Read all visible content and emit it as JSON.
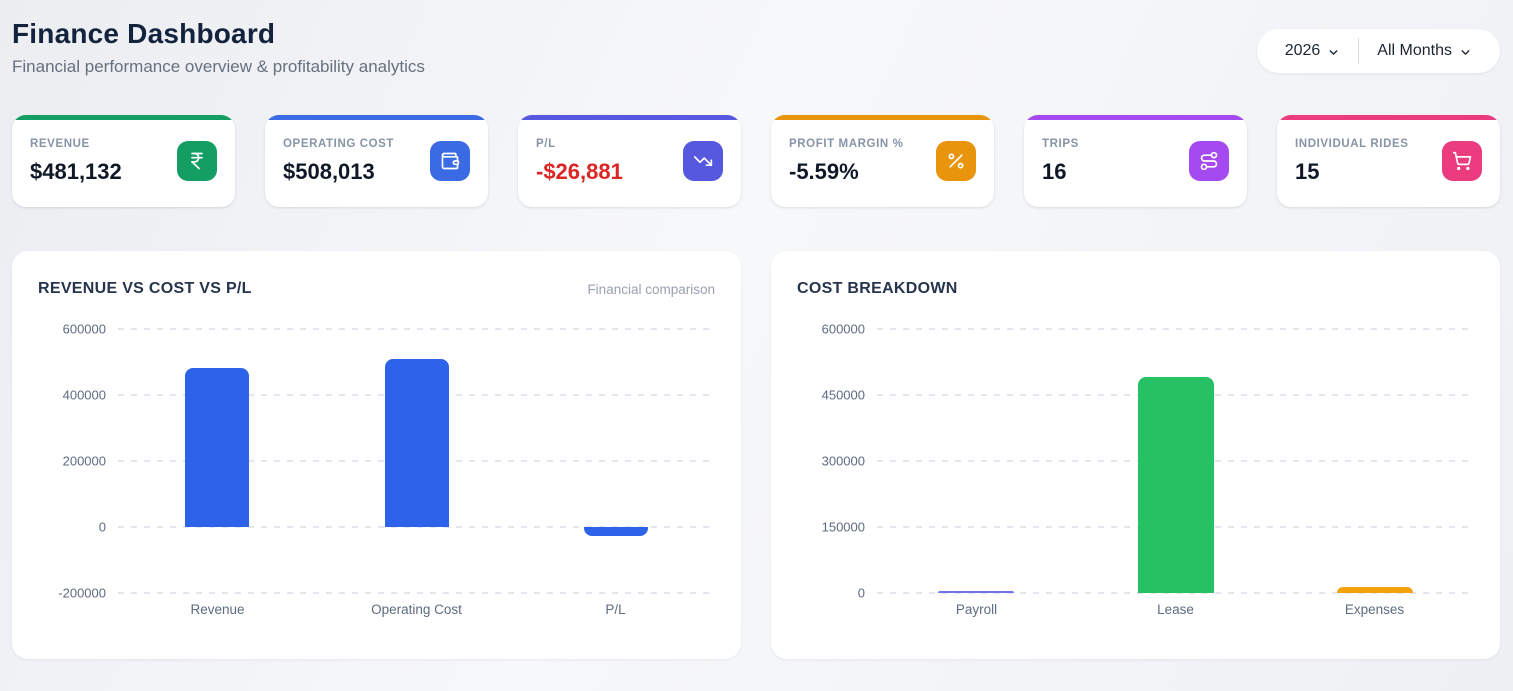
{
  "header": {
    "title": "Finance Dashboard",
    "subtitle": "Financial performance overview & profitability analytics",
    "filters": {
      "year": "2026",
      "month": "All Months"
    }
  },
  "kpis": [
    {
      "label": "REVENUE",
      "value": "$481,132",
      "accent": "#149e63",
      "icon": "indian-rupee-icon"
    },
    {
      "label": "OPERATING COST",
      "value": "$508,013",
      "accent": "#3a6ae4",
      "icon": "wallet-icon"
    },
    {
      "label": "P/L",
      "value": "-$26,881",
      "accent": "#5658e0",
      "icon": "trending-down-icon",
      "value_color": "#dc2626"
    },
    {
      "label": "PROFIT MARGIN %",
      "value": "-5.59%",
      "accent": "#e9940d",
      "icon": "percent-icon"
    },
    {
      "label": "TRIPS",
      "value": "16",
      "accent": "#a44af0",
      "icon": "route-icon"
    },
    {
      "label": "INDIVIDUAL RIDES",
      "value": "15",
      "accent": "#ec3c80",
      "icon": "shopping-cart-icon"
    }
  ],
  "chart_data": [
    {
      "type": "bar",
      "title": "REVENUE VS COST VS P/L",
      "subtitle": "Financial comparison",
      "categories": [
        "Revenue",
        "Operating Cost",
        "P/L"
      ],
      "values": [
        481132,
        508013,
        -26881
      ],
      "bar_colors": [
        "#2d63e8",
        "#2d63e8",
        "#2d63e8"
      ],
      "ylim": [
        -200000,
        600000
      ],
      "yticks": [
        600000,
        400000,
        200000,
        0,
        -200000
      ],
      "xlabel": "",
      "ylabel": "",
      "grid": "horizontal-dashed",
      "legend": "none"
    },
    {
      "type": "bar",
      "title": "COST BREAKDOWN",
      "subtitle": "",
      "categories": [
        "Payroll",
        "Lease",
        "Expenses"
      ],
      "values": [
        5000,
        490000,
        13000
      ],
      "bar_colors": [
        "#6f74ee",
        "#27c163",
        "#f5a00d"
      ],
      "ylim": [
        0,
        600000
      ],
      "yticks": [
        600000,
        450000,
        300000,
        150000,
        0
      ],
      "xlabel": "",
      "ylabel": "",
      "grid": "horizontal-dashed",
      "legend": "none"
    }
  ]
}
